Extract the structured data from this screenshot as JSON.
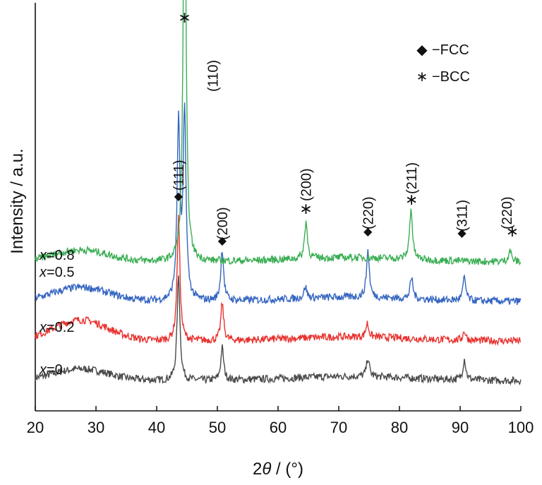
{
  "chart_data": {
    "type": "line",
    "xlabel_prefix": "2",
    "xlabel_symbol": "θ",
    "xlabel_suffix": " / (°)",
    "ylabel": "Intensity / a.u.",
    "xlim": [
      20,
      100
    ],
    "x_ticks": [
      "20",
      "30",
      "40",
      "50",
      "60",
      "70",
      "80",
      "90",
      "100"
    ],
    "y_ticks_shown": false,
    "grid": false,
    "legend": {
      "placement": "top-right",
      "entries": [
        {
          "symbol": "◆",
          "text": "−FCC"
        },
        {
          "symbol": "∗",
          "text": "−BCC"
        }
      ]
    },
    "series": [
      {
        "name_prefix": "x",
        "name_value": "=0",
        "color": "#4a4a4a",
        "baseline": 0.13,
        "background_hump": 0.05,
        "peaks": [
          [
            43.6,
            0.45
          ],
          [
            50.8,
            0.14
          ],
          [
            74.8,
            0.08
          ],
          [
            90.7,
            0.09
          ]
        ]
      },
      {
        "name_prefix": "x",
        "name_value": "=0.2",
        "color": "#e8332f",
        "baseline": 0.3,
        "background_hump": 0.09,
        "peaks": [
          [
            43.6,
            0.53
          ],
          [
            50.8,
            0.16
          ],
          [
            74.7,
            0.06
          ],
          [
            90.7,
            0.04
          ]
        ]
      },
      {
        "name_prefix": "x",
        "name_value": "=0.5",
        "color": "#3565c1",
        "baseline": 0.47,
        "background_hump": 0.06,
        "peaks": [
          [
            43.6,
            0.75
          ],
          [
            44.6,
            0.8
          ],
          [
            50.8,
            0.22
          ],
          [
            64.5,
            0.05
          ],
          [
            74.8,
            0.2
          ],
          [
            82.0,
            0.09
          ],
          [
            90.7,
            0.1
          ]
        ]
      },
      {
        "name_prefix": "x",
        "name_value": "=0.8",
        "color": "#3cae55",
        "baseline": 0.64,
        "background_hump": 0.05,
        "peaks": [
          [
            44.6,
            1.83
          ],
          [
            64.6,
            0.16
          ],
          [
            81.9,
            0.22
          ],
          [
            98.2,
            0.05
          ]
        ]
      }
    ],
    "peak_annotations": [
      {
        "label": "(111)",
        "x": 43.6,
        "marker": "◆"
      },
      {
        "label": "(110)",
        "x": 44.6,
        "marker": "∗"
      },
      {
        "label": "(200)",
        "x": 50.8,
        "marker": "◆"
      },
      {
        "label": "(200)",
        "x": 64.6,
        "marker": "∗"
      },
      {
        "label": "(220)",
        "x": 74.8,
        "marker": "◆"
      },
      {
        "label": "(211)",
        "x": 82.0,
        "marker": "∗"
      },
      {
        "label": "(311)",
        "x": 90.3,
        "marker": "◆"
      },
      {
        "label": "(220)",
        "x": 98.6,
        "marker": "∗"
      }
    ]
  }
}
